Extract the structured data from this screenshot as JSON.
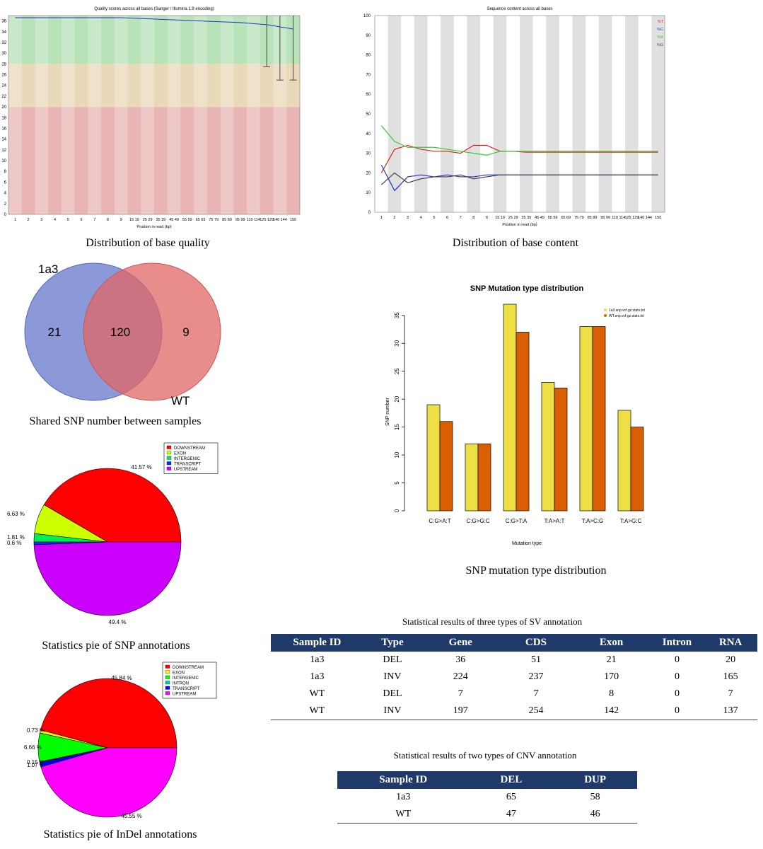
{
  "captions": {
    "base_quality": "Distribution of base quality",
    "base_content": "Distribution of base content",
    "venn": "Shared SNP number between samples",
    "snp_mutation": "SNP mutation type distribution",
    "snp_pie": "Statistics pie of SNP annotations",
    "indel_pie": "Statistics pie of InDel annotations"
  },
  "chart_data": [
    {
      "id": "base_quality",
      "type": "line",
      "title": "Quality scores across all bases (Sanger / Illumina 1.9 encoding)",
      "xlabel": "Position in read (bp)",
      "ylabel": "",
      "ylim": [
        0,
        37
      ],
      "yticks": [
        0,
        2,
        4,
        6,
        8,
        10,
        12,
        14,
        16,
        18,
        20,
        22,
        24,
        26,
        28,
        30,
        32,
        34,
        36
      ],
      "categories": [
        "1",
        "2",
        "3",
        "4",
        "5",
        "6",
        "7",
        "8",
        "9",
        "15 19",
        "25 29",
        "35 39",
        "45 49",
        "55 59",
        "65 69",
        "75 79",
        "85 89",
        "95 99",
        "110 114",
        "125 129",
        "140 144",
        "150"
      ],
      "zones": [
        {
          "from": 0,
          "to": 20,
          "color": "#e8b4b4"
        },
        {
          "from": 20,
          "to": 28,
          "color": "#ead9b8"
        },
        {
          "from": 28,
          "to": 37,
          "color": "#b8e2b8"
        }
      ],
      "series": [
        {
          "values": [
            36.6,
            36.6,
            36.6,
            36.6,
            36.6,
            36.6,
            36.6,
            36.6,
            36.6,
            36.5,
            36.4,
            36.3,
            36.2,
            36.1,
            36.0,
            35.9,
            35.8,
            35.7,
            35.5,
            35.3,
            34.9,
            34.5
          ],
          "color": "#2233cc"
        }
      ],
      "whiskers": [
        {
          "index": 19,
          "low": 27.5,
          "high": 37
        },
        {
          "index": 20,
          "low": 25.0,
          "high": 37
        },
        {
          "index": 21,
          "low": 25.0,
          "high": 37
        }
      ]
    },
    {
      "id": "base_content",
      "type": "line",
      "title": "Sequence content across all bases",
      "xlabel": "Position in read (bp)",
      "ylabel": "",
      "ylim": [
        0,
        100
      ],
      "yticks": [
        0,
        10,
        20,
        30,
        40,
        50,
        60,
        70,
        80,
        90,
        100
      ],
      "categories": [
        "1",
        "2",
        "3",
        "4",
        "5",
        "6",
        "7",
        "8",
        "9",
        "15 19",
        "25 29",
        "35 39",
        "45 49",
        "55 59",
        "65 69",
        "75 79",
        "85 89",
        "95 99",
        "110 114",
        "125 129",
        "140 144",
        "150"
      ],
      "series": [
        {
          "name": "%T",
          "color": "#dd2222",
          "values": [
            20,
            32,
            34,
            32,
            31,
            31,
            30,
            34,
            34,
            31,
            31,
            30.5,
            30.5,
            30.5,
            30.5,
            30.5,
            30.5,
            30.5,
            30.5,
            30.5,
            30.5,
            30.5
          ]
        },
        {
          "name": "%C",
          "color": "#2233cc",
          "values": [
            24,
            11,
            18,
            19,
            18,
            19,
            18,
            18,
            19,
            19,
            19,
            19,
            19,
            19,
            19,
            19,
            19,
            19,
            19,
            19,
            19,
            19
          ]
        },
        {
          "name": "%A",
          "color": "#33cc33",
          "values": [
            44,
            36,
            33,
            33,
            33,
            32,
            31,
            30,
            29,
            31,
            31,
            31,
            31,
            31,
            31,
            31,
            31,
            31,
            31,
            31,
            31,
            31
          ]
        },
        {
          "name": "%G",
          "color": "#444444",
          "values": [
            14,
            20,
            15,
            17,
            18,
            18,
            19,
            17,
            18,
            19,
            19,
            19,
            19,
            19,
            19,
            19,
            19,
            19,
            19,
            19,
            19,
            19
          ]
        }
      ]
    },
    {
      "id": "venn",
      "type": "venn",
      "sets": [
        {
          "name": "1a3",
          "color": "#6677cc"
        },
        {
          "name": "WT",
          "color": "#e06666"
        }
      ],
      "values": {
        "left_only": 21,
        "shared": 120,
        "right_only": 9
      }
    },
    {
      "id": "snp_mutation",
      "type": "bar",
      "title": "SNP Mutation type distribution",
      "xlabel": "Mutation type",
      "ylabel": "SNP number",
      "ylim": [
        0,
        37
      ],
      "yticks": [
        0,
        5,
        10,
        15,
        20,
        25,
        30,
        35
      ],
      "categories": [
        "C:G>A:T",
        "C:G>G:C",
        "C:G>T:A",
        "T:A>A:T",
        "T:A>C:G",
        "T:A>G:C"
      ],
      "legend_position": "top-right",
      "series": [
        {
          "name": "1a3.snp.vcf.gz.stats.txt",
          "color": "#eee044",
          "values": [
            19,
            12,
            37,
            23,
            33,
            18
          ]
        },
        {
          "name": "WT.snp.vcf.gz.stats.txt",
          "color": "#d95f02",
          "values": [
            16,
            12,
            32,
            22,
            33,
            15
          ]
        }
      ]
    },
    {
      "id": "snp_pie",
      "type": "pie",
      "legend_position": "top-right",
      "slices": [
        {
          "name": "DOWNSTREAM",
          "value": 41.57,
          "label": "41.57 %",
          "color": "#ff0000"
        },
        {
          "name": "EXON",
          "value": 6.63,
          "label": "6.63 %",
          "color": "#ccff00"
        },
        {
          "name": "INTERGENIC",
          "value": 1.81,
          "label": "1.81 %",
          "color": "#00ee55"
        },
        {
          "name": "TRANSCRIPT",
          "value": 0.6,
          "label": "0.6 %",
          "color": "#0033ff"
        },
        {
          "name": "UPSTREAM",
          "value": 49.4,
          "label": "49.4 %",
          "color": "#cc00ff"
        }
      ]
    },
    {
      "id": "indel_pie",
      "type": "pie",
      "legend_position": "top-right",
      "slices": [
        {
          "name": "DOWNSTREAM",
          "value": 45.84,
          "label": "45.84 %",
          "color": "#ff0000"
        },
        {
          "name": "EXON",
          "value": 0.73,
          "label": "0.73 %",
          "color": "#ffee00"
        },
        {
          "name": "INTERGENIC",
          "value": 6.66,
          "label": "6.66 %",
          "color": "#00ff00"
        },
        {
          "name": "INTRON",
          "value": 0.15,
          "label": "0.15 %",
          "color": "#00ccaa"
        },
        {
          "name": "TRANSCRIPT",
          "value": 1.07,
          "label": "1.07 %",
          "color": "#0000ee"
        },
        {
          "name": "UPSTREAM",
          "value": 45.55,
          "label": "45.55 %",
          "color": "#ff00ff"
        }
      ]
    },
    {
      "id": "sv_table",
      "type": "table",
      "title": "Statistical results of three types of SV annotation",
      "columns": [
        "Sample ID",
        "Type",
        "Gene",
        "CDS",
        "Exon",
        "Intron",
        "RNA"
      ],
      "rows": [
        [
          "1a3",
          "DEL",
          "36",
          "51",
          "21",
          "0",
          "20"
        ],
        [
          "1a3",
          "INV",
          "224",
          "237",
          "170",
          "0",
          "165"
        ],
        [
          "WT",
          "DEL",
          "7",
          "7",
          "8",
          "0",
          "7"
        ],
        [
          "WT",
          "INV",
          "197",
          "254",
          "142",
          "0",
          "137"
        ]
      ]
    },
    {
      "id": "cnv_table",
      "type": "table",
      "title": "Statistical results of two types of CNV annotation",
      "columns": [
        "Sample ID",
        "DEL",
        "DUP"
      ],
      "rows": [
        [
          "1a3",
          "65",
          "58"
        ],
        [
          "WT",
          "47",
          "46"
        ]
      ]
    }
  ]
}
